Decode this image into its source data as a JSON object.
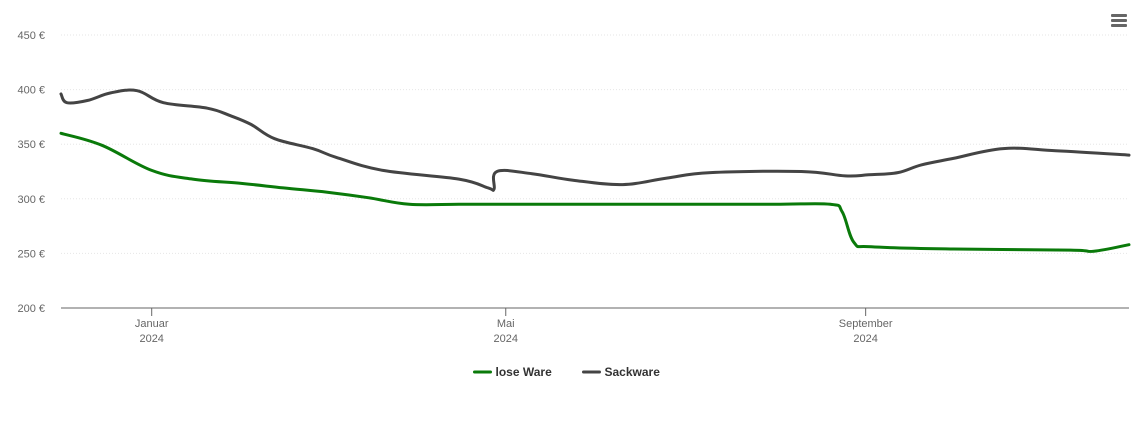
{
  "menu": {
    "icon": "hamburger-menu-icon"
  },
  "chart_data": {
    "type": "line",
    "title": "",
    "xlabel": "",
    "ylabel": "",
    "x_range": [
      "2023-12-01",
      "2024-11-30"
    ],
    "ylim": [
      200,
      450
    ],
    "y_ticks": [
      200,
      250,
      300,
      350,
      400,
      450
    ],
    "y_tick_labels": [
      "200 €",
      "250 €",
      "300 €",
      "350 €",
      "400 €",
      "450 €"
    ],
    "x_ticks": [
      {
        "date": "2024-01-01",
        "month": "Januar",
        "year": "2024"
      },
      {
        "date": "2024-05-01",
        "month": "Mai",
        "year": "2024"
      },
      {
        "date": "2024-09-01",
        "month": "September",
        "year": "2024"
      }
    ],
    "grid": true,
    "legend_position": "bottom-center",
    "series": [
      {
        "name": "lose Ware",
        "color": "#0a7a0a",
        "points": [
          [
            "2023-12-01",
            360
          ],
          [
            "2023-12-15",
            349
          ],
          [
            "2024-01-01",
            326
          ],
          [
            "2024-01-15",
            318
          ],
          [
            "2024-02-01",
            314
          ],
          [
            "2024-02-15",
            310
          ],
          [
            "2024-03-01",
            306
          ],
          [
            "2024-03-15",
            301
          ],
          [
            "2024-03-29",
            295
          ],
          [
            "2024-04-15",
            295
          ],
          [
            "2024-05-01",
            295
          ],
          [
            "2024-06-01",
            295
          ],
          [
            "2024-07-01",
            295
          ],
          [
            "2024-08-01",
            295
          ],
          [
            "2024-08-20",
            295
          ],
          [
            "2024-08-24",
            288
          ],
          [
            "2024-08-28",
            260
          ],
          [
            "2024-09-03",
            256
          ],
          [
            "2024-10-01",
            254
          ],
          [
            "2024-11-10",
            253
          ],
          [
            "2024-11-18",
            252
          ],
          [
            "2024-11-30",
            258
          ]
        ]
      },
      {
        "name": "Sackware",
        "color": "#444444",
        "points": [
          [
            "2023-12-01",
            396
          ],
          [
            "2023-12-03",
            388
          ],
          [
            "2023-12-10",
            390
          ],
          [
            "2023-12-18",
            397
          ],
          [
            "2023-12-27",
            399
          ],
          [
            "2024-01-05",
            388
          ],
          [
            "2024-01-20",
            383
          ],
          [
            "2024-01-28",
            376
          ],
          [
            "2024-02-04",
            368
          ],
          [
            "2024-02-12",
            355
          ],
          [
            "2024-02-25",
            346
          ],
          [
            "2024-03-04",
            338
          ],
          [
            "2024-03-20",
            326
          ],
          [
            "2024-04-15",
            318
          ],
          [
            "2024-04-25",
            310
          ],
          [
            "2024-04-27",
            309
          ],
          [
            "2024-04-28",
            325
          ],
          [
            "2024-05-10",
            323
          ],
          [
            "2024-05-24",
            317
          ],
          [
            "2024-06-10",
            313
          ],
          [
            "2024-06-25",
            319
          ],
          [
            "2024-07-10",
            324
          ],
          [
            "2024-08-10",
            325
          ],
          [
            "2024-08-25",
            321
          ],
          [
            "2024-09-02",
            322
          ],
          [
            "2024-09-12",
            324
          ],
          [
            "2024-09-20",
            331
          ],
          [
            "2024-10-01",
            337
          ],
          [
            "2024-10-18",
            346
          ],
          [
            "2024-11-05",
            344
          ],
          [
            "2024-11-30",
            340
          ]
        ]
      }
    ]
  }
}
